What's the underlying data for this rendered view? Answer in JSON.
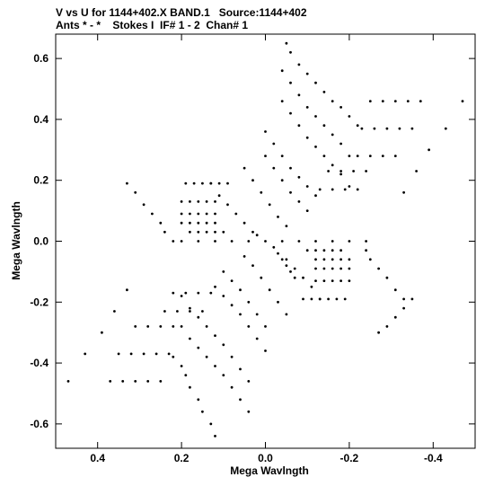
{
  "header": {
    "line1": "V vs U for 1144+402.X BAND.1   Source:1144+402",
    "line2": "Ants * - *    Stokes I  IF# 1 - 2  Chan# 1"
  },
  "chart_data": {
    "type": "scatter",
    "title": "V vs U for 1144+402.X BAND.1   Source:1144+402",
    "subtitle": "Ants * - *    Stokes I  IF# 1 - 2  Chan# 1",
    "xlabel": "Mega Wavlngth",
    "ylabel": "Mega Wavlngth",
    "xlim": [
      0.5,
      -0.5
    ],
    "ylim": [
      -0.68,
      0.68
    ],
    "x_reversed": true,
    "x_ticks": [
      0.4,
      0.2,
      0.0,
      -0.2,
      -0.4
    ],
    "x_tick_labels": [
      "0.4",
      "0.2",
      "0.0",
      "-0.2",
      "-0.4"
    ],
    "y_ticks": [
      0.6,
      0.4,
      0.2,
      0.0,
      -0.2,
      -0.4,
      -0.6
    ],
    "y_tick_labels": [
      "0.6",
      "0.4",
      "0.2",
      "0.0",
      "-0.2",
      "-0.4",
      "-0.6"
    ],
    "grid": false,
    "legend": "none",
    "point_color": "#000000",
    "series": [
      {
        "values": [
          [
            -0.05,
            0.65
          ],
          [
            -0.06,
            0.62
          ],
          [
            -0.08,
            0.58
          ],
          [
            -0.1,
            0.55
          ],
          [
            -0.12,
            0.52
          ],
          [
            -0.14,
            0.49
          ],
          [
            -0.16,
            0.46
          ],
          [
            -0.18,
            0.44
          ],
          [
            -0.2,
            0.41
          ],
          [
            -0.22,
            0.38
          ],
          [
            -0.25,
            0.46
          ],
          [
            -0.28,
            0.46
          ],
          [
            -0.31,
            0.46
          ],
          [
            -0.34,
            0.46
          ],
          [
            -0.37,
            0.46
          ],
          [
            -0.04,
            0.56
          ],
          [
            -0.06,
            0.52
          ],
          [
            -0.08,
            0.48
          ],
          [
            -0.1,
            0.44
          ],
          [
            -0.12,
            0.41
          ],
          [
            -0.14,
            0.38
          ],
          [
            -0.16,
            0.35
          ],
          [
            -0.18,
            0.32
          ],
          [
            -0.2,
            0.28
          ],
          [
            -0.23,
            0.37
          ],
          [
            -0.26,
            0.37
          ],
          [
            -0.29,
            0.37
          ],
          [
            -0.32,
            0.37
          ],
          [
            -0.35,
            0.37
          ],
          [
            -0.04,
            0.46
          ],
          [
            -0.06,
            0.42
          ],
          [
            -0.08,
            0.38
          ],
          [
            -0.1,
            0.34
          ],
          [
            -0.12,
            0.31
          ],
          [
            -0.14,
            0.28
          ],
          [
            -0.16,
            0.25
          ],
          [
            -0.18,
            0.22
          ],
          [
            -0.2,
            0.18
          ],
          [
            -0.22,
            0.28
          ],
          [
            -0.25,
            0.28
          ],
          [
            -0.28,
            0.28
          ],
          [
            -0.31,
            0.28
          ],
          [
            0.0,
            0.36
          ],
          [
            -0.02,
            0.32
          ],
          [
            -0.04,
            0.28
          ],
          [
            -0.06,
            0.24
          ],
          [
            -0.08,
            0.21
          ],
          [
            -0.1,
            0.18
          ],
          [
            -0.12,
            0.15
          ],
          [
            -0.15,
            0.23
          ],
          [
            -0.18,
            0.23
          ],
          [
            -0.21,
            0.23
          ],
          [
            -0.24,
            0.23
          ],
          [
            0.0,
            0.28
          ],
          [
            -0.02,
            0.24
          ],
          [
            -0.04,
            0.2
          ],
          [
            -0.06,
            0.16
          ],
          [
            -0.08,
            0.13
          ],
          [
            -0.1,
            0.1
          ],
          [
            -0.13,
            0.17
          ],
          [
            -0.16,
            0.17
          ],
          [
            -0.19,
            0.17
          ],
          [
            -0.22,
            0.17
          ],
          [
            0.05,
            0.24
          ],
          [
            0.03,
            0.2
          ],
          [
            0.01,
            0.16
          ],
          [
            -0.01,
            0.12
          ],
          [
            -0.03,
            0.08
          ],
          [
            -0.05,
            0.05
          ],
          [
            0.13,
            0.19
          ],
          [
            0.11,
            0.15
          ],
          [
            0.09,
            0.12
          ],
          [
            0.07,
            0.09
          ],
          [
            0.05,
            0.06
          ],
          [
            0.03,
            0.03
          ],
          [
            0.02,
            0.02
          ],
          [
            0.19,
            0.19
          ],
          [
            0.17,
            0.19
          ],
          [
            0.15,
            0.19
          ],
          [
            0.13,
            0.19
          ],
          [
            0.11,
            0.19
          ],
          [
            0.09,
            0.19
          ],
          [
            0.33,
            0.19
          ],
          [
            0.31,
            0.16
          ],
          [
            0.29,
            0.12
          ],
          [
            0.27,
            0.09
          ],
          [
            0.25,
            0.06
          ],
          [
            0.24,
            0.03
          ],
          [
            0.22,
            0.0
          ],
          [
            0.12,
            0.13
          ],
          [
            0.14,
            0.13
          ],
          [
            0.16,
            0.13
          ],
          [
            0.18,
            0.13
          ],
          [
            0.2,
            0.13
          ],
          [
            0.12,
            0.09
          ],
          [
            0.14,
            0.09
          ],
          [
            0.16,
            0.09
          ],
          [
            0.18,
            0.09
          ],
          [
            0.2,
            0.09
          ],
          [
            0.12,
            0.06
          ],
          [
            0.14,
            0.06
          ],
          [
            0.16,
            0.06
          ],
          [
            0.18,
            0.06
          ],
          [
            0.2,
            0.06
          ],
          [
            0.1,
            0.03
          ],
          [
            0.12,
            0.03
          ],
          [
            0.14,
            0.03
          ],
          [
            0.16,
            0.03
          ],
          [
            0.18,
            0.03
          ],
          [
            0.2,
            0.0
          ],
          [
            0.16,
            0.0
          ],
          [
            0.12,
            0.0
          ],
          [
            0.08,
            0.0
          ],
          [
            0.04,
            0.0
          ],
          [
            0.0,
            0.0
          ],
          [
            -0.04,
            0.0
          ],
          [
            -0.08,
            0.0
          ],
          [
            -0.12,
            0.0
          ],
          [
            -0.16,
            0.0
          ],
          [
            -0.2,
            0.0
          ],
          [
            -0.24,
            0.0
          ],
          [
            -0.1,
            -0.03
          ],
          [
            -0.12,
            -0.03
          ],
          [
            -0.14,
            -0.03
          ],
          [
            -0.16,
            -0.03
          ],
          [
            -0.18,
            -0.03
          ],
          [
            -0.12,
            -0.06
          ],
          [
            -0.14,
            -0.06
          ],
          [
            -0.16,
            -0.06
          ],
          [
            -0.18,
            -0.06
          ],
          [
            -0.2,
            -0.06
          ],
          [
            -0.12,
            -0.09
          ],
          [
            -0.14,
            -0.09
          ],
          [
            -0.16,
            -0.09
          ],
          [
            -0.18,
            -0.09
          ],
          [
            -0.2,
            -0.09
          ],
          [
            -0.12,
            -0.13
          ],
          [
            -0.14,
            -0.13
          ],
          [
            -0.16,
            -0.13
          ],
          [
            -0.18,
            -0.13
          ],
          [
            -0.2,
            -0.13
          ],
          [
            -0.33,
            -0.19
          ],
          [
            -0.31,
            -0.16
          ],
          [
            -0.29,
            -0.12
          ],
          [
            -0.27,
            -0.09
          ],
          [
            -0.25,
            -0.06
          ],
          [
            -0.24,
            -0.03
          ],
          [
            -0.19,
            -0.19
          ],
          [
            -0.17,
            -0.19
          ],
          [
            -0.15,
            -0.19
          ],
          [
            -0.13,
            -0.19
          ],
          [
            -0.11,
            -0.19
          ],
          [
            -0.09,
            -0.19
          ],
          [
            -0.02,
            -0.02
          ],
          [
            -0.03,
            -0.04
          ],
          [
            -0.04,
            -0.06
          ],
          [
            -0.05,
            -0.08
          ],
          [
            -0.06,
            -0.1
          ],
          [
            -0.07,
            -0.12
          ],
          [
            -0.13,
            -0.19
          ],
          [
            -0.11,
            -0.15
          ],
          [
            -0.09,
            -0.12
          ],
          [
            -0.07,
            -0.09
          ],
          [
            -0.05,
            -0.06
          ],
          [
            -0.05,
            -0.24
          ],
          [
            -0.03,
            -0.2
          ],
          [
            -0.01,
            -0.16
          ],
          [
            0.01,
            -0.12
          ],
          [
            0.03,
            -0.08
          ],
          [
            0.05,
            -0.05
          ],
          [
            0.0,
            -0.28
          ],
          [
            0.02,
            -0.24
          ],
          [
            0.04,
            -0.2
          ],
          [
            0.06,
            -0.16
          ],
          [
            0.08,
            -0.13
          ],
          [
            0.1,
            -0.1
          ],
          [
            0.13,
            -0.17
          ],
          [
            0.16,
            -0.17
          ],
          [
            0.19,
            -0.17
          ],
          [
            0.22,
            -0.17
          ],
          [
            0.0,
            -0.36
          ],
          [
            0.02,
            -0.32
          ],
          [
            0.04,
            -0.28
          ],
          [
            0.06,
            -0.24
          ],
          [
            0.08,
            -0.21
          ],
          [
            0.1,
            -0.18
          ],
          [
            0.12,
            -0.15
          ],
          [
            0.15,
            -0.23
          ],
          [
            0.18,
            -0.23
          ],
          [
            0.21,
            -0.23
          ],
          [
            0.24,
            -0.23
          ],
          [
            0.04,
            -0.46
          ],
          [
            0.06,
            -0.42
          ],
          [
            0.08,
            -0.38
          ],
          [
            0.1,
            -0.34
          ],
          [
            0.12,
            -0.31
          ],
          [
            0.14,
            -0.28
          ],
          [
            0.16,
            -0.25
          ],
          [
            0.18,
            -0.22
          ],
          [
            0.2,
            -0.18
          ],
          [
            0.22,
            -0.28
          ],
          [
            0.25,
            -0.28
          ],
          [
            0.28,
            -0.28
          ],
          [
            0.31,
            -0.28
          ],
          [
            0.04,
            -0.56
          ],
          [
            0.06,
            -0.52
          ],
          [
            0.08,
            -0.48
          ],
          [
            0.1,
            -0.44
          ],
          [
            0.12,
            -0.41
          ],
          [
            0.14,
            -0.38
          ],
          [
            0.16,
            -0.35
          ],
          [
            0.18,
            -0.32
          ],
          [
            0.2,
            -0.28
          ],
          [
            0.23,
            -0.37
          ],
          [
            0.26,
            -0.37
          ],
          [
            0.29,
            -0.37
          ],
          [
            0.32,
            -0.37
          ],
          [
            0.35,
            -0.37
          ],
          [
            0.12,
            -0.64
          ],
          [
            0.13,
            -0.6
          ],
          [
            0.15,
            -0.56
          ],
          [
            0.16,
            -0.52
          ],
          [
            0.18,
            -0.48
          ],
          [
            0.19,
            -0.44
          ],
          [
            0.2,
            -0.41
          ],
          [
            0.22,
            -0.38
          ],
          [
            0.25,
            -0.46
          ],
          [
            0.28,
            -0.46
          ],
          [
            0.31,
            -0.46
          ],
          [
            0.34,
            -0.46
          ],
          [
            0.37,
            -0.46
          ],
          [
            0.47,
            -0.46
          ],
          [
            0.43,
            -0.37
          ],
          [
            0.39,
            -0.3
          ],
          [
            0.36,
            -0.23
          ],
          [
            0.33,
            -0.16
          ],
          [
            -0.47,
            0.46
          ],
          [
            -0.43,
            0.37
          ],
          [
            -0.39,
            0.3
          ],
          [
            -0.36,
            0.23
          ],
          [
            -0.33,
            0.16
          ],
          [
            -0.35,
            -0.19
          ],
          [
            -0.33,
            -0.22
          ],
          [
            -0.31,
            -0.25
          ],
          [
            -0.29,
            -0.28
          ],
          [
            -0.27,
            -0.3
          ]
        ]
      }
    ]
  }
}
